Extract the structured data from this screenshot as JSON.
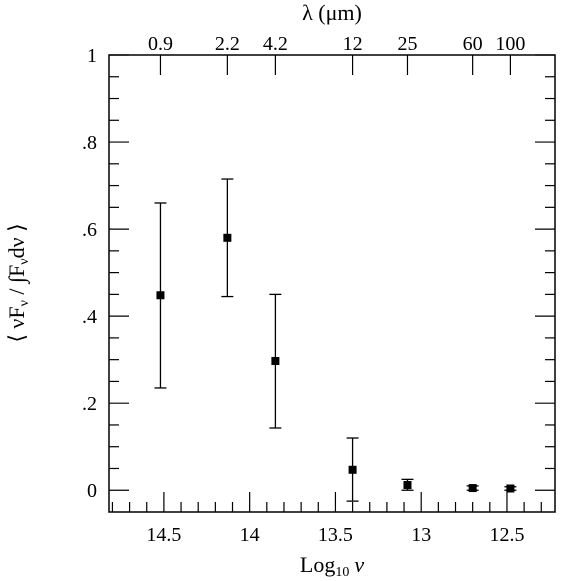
{
  "chart_data": {
    "type": "scatter",
    "title": "",
    "xlabel_main": "Log",
    "xlabel_sub": "10",
    "xlabel_var": "ν",
    "top_axis_label": "λ (μm)",
    "ylabel": "⟨ νF",
    "ylabel_sub1": "ν",
    "ylabel_mid": " / ∫F",
    "ylabel_sub2": "ν",
    "ylabel_end": "dν ⟩",
    "x_reversed": true,
    "xlim": [
      14.82,
      12.22
    ],
    "ylim": [
      -0.05,
      1.0
    ],
    "x_ticks": [
      "14.5",
      "14",
      "13.5",
      "13",
      "12.5"
    ],
    "y_ticks": [
      {
        "value": 0,
        "label": "0"
      },
      {
        "value": 0.2,
        "label": ".2"
      },
      {
        "value": 0.4,
        "label": ".4"
      },
      {
        "value": 0.6,
        "label": ".6"
      },
      {
        "value": 0.8,
        "label": ".8"
      },
      {
        "value": 1.0,
        "label": "1"
      }
    ],
    "top_ticks": [
      {
        "label": "0.9",
        "log_nu": 14.52
      },
      {
        "label": "2.2",
        "log_nu": 14.13
      },
      {
        "label": "4.2",
        "log_nu": 13.85
      },
      {
        "label": "12",
        "log_nu": 13.4
      },
      {
        "label": "25",
        "log_nu": 13.08
      },
      {
        "label": "60",
        "log_nu": 12.7
      },
      {
        "label": "100",
        "log_nu": 12.48
      }
    ],
    "points": [
      {
        "x": 14.52,
        "y": 0.448,
        "err_low": 0.235,
        "err_high": 0.66
      },
      {
        "x": 14.13,
        "y": 0.58,
        "err_low": 0.445,
        "err_high": 0.715
      },
      {
        "x": 13.85,
        "y": 0.297,
        "err_low": 0.143,
        "err_high": 0.45
      },
      {
        "x": 13.4,
        "y": 0.047,
        "err_low": -0.025,
        "err_high": 0.12
      },
      {
        "x": 13.08,
        "y": 0.012,
        "err_low": 0.0,
        "err_high": 0.025
      },
      {
        "x": 12.7,
        "y": 0.005,
        "err_low": 0.0,
        "err_high": 0.01
      },
      {
        "x": 12.48,
        "y": 0.004,
        "err_low": 0.0,
        "err_high": 0.008
      }
    ],
    "grid": false,
    "legend": "none"
  }
}
